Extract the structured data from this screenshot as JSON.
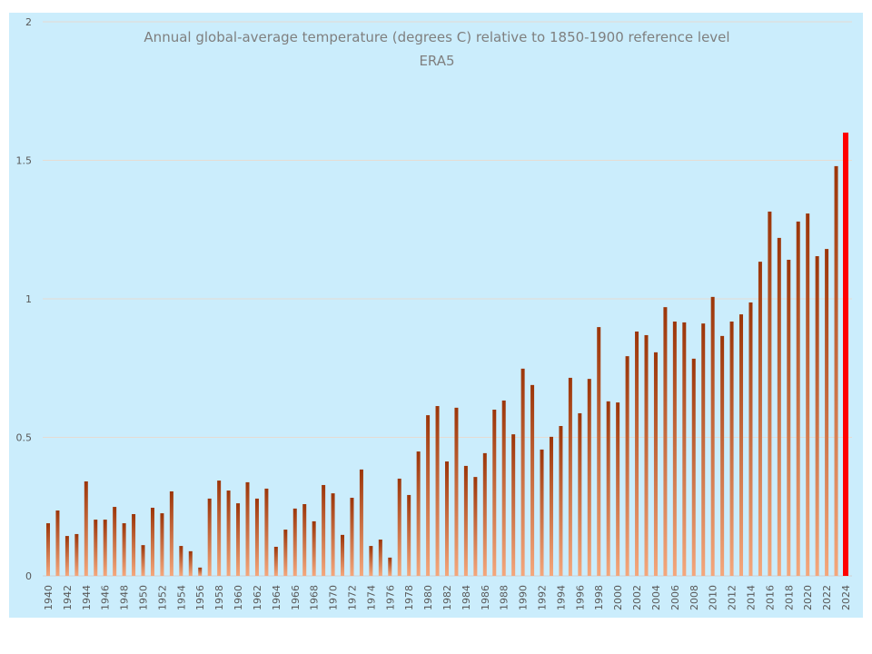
{
  "chart_data": {
    "type": "bar",
    "title": "Annual global-average temperature (degrees C) relative to 1850-1900 reference level",
    "subtitle": "ERA5",
    "xlabel": "",
    "ylabel": "",
    "ylim": [
      0,
      2
    ],
    "yticks": [
      "0",
      "0.5",
      "1",
      "1.5",
      "2"
    ],
    "grid": true,
    "legend": "none",
    "colors": {
      "bar": "#a0380a",
      "bar_light": "#f4a77c",
      "highlight": "#ff0000",
      "background": "#cbedfc"
    },
    "categories": [
      "1940",
      "1941",
      "1942",
      "1943",
      "1944",
      "1945",
      "1946",
      "1947",
      "1948",
      "1949",
      "1950",
      "1951",
      "1952",
      "1953",
      "1954",
      "1955",
      "1956",
      "1957",
      "1958",
      "1959",
      "1960",
      "1961",
      "1962",
      "1963",
      "1964",
      "1965",
      "1966",
      "1967",
      "1968",
      "1969",
      "1970",
      "1971",
      "1972",
      "1973",
      "1974",
      "1975",
      "1976",
      "1977",
      "1978",
      "1979",
      "1980",
      "1981",
      "1982",
      "1983",
      "1984",
      "1985",
      "1986",
      "1987",
      "1988",
      "1989",
      "1990",
      "1991",
      "1992",
      "1993",
      "1994",
      "1995",
      "1996",
      "1997",
      "1998",
      "1999",
      "2000",
      "2001",
      "2002",
      "2003",
      "2004",
      "2005",
      "2006",
      "2007",
      "2008",
      "2009",
      "2010",
      "2011",
      "2012",
      "2013",
      "2014",
      "2015",
      "2016",
      "2017",
      "2018",
      "2019",
      "2020",
      "2021",
      "2022",
      "2023",
      "2024"
    ],
    "values": [
      0.19,
      0.236,
      0.144,
      0.151,
      0.341,
      0.203,
      0.203,
      0.249,
      0.19,
      0.223,
      0.111,
      0.246,
      0.226,
      0.305,
      0.108,
      0.089,
      0.03,
      0.279,
      0.344,
      0.308,
      0.262,
      0.338,
      0.279,
      0.315,
      0.105,
      0.167,
      0.243,
      0.259,
      0.197,
      0.328,
      0.298,
      0.148,
      0.282,
      0.384,
      0.108,
      0.131,
      0.066,
      0.351,
      0.292,
      0.449,
      0.58,
      0.613,
      0.413,
      0.607,
      0.397,
      0.357,
      0.443,
      0.6,
      0.633,
      0.511,
      0.748,
      0.689,
      0.456,
      0.502,
      0.541,
      0.715,
      0.587,
      0.711,
      0.898,
      0.63,
      0.626,
      0.793,
      0.882,
      0.869,
      0.807,
      0.97,
      0.918,
      0.915,
      0.784,
      0.911,
      1.007,
      0.866,
      0.918,
      0.944,
      0.987,
      1.134,
      1.315,
      1.22,
      1.141,
      1.279,
      1.308,
      1.154,
      1.18,
      1.479,
      1.6
    ],
    "highlighted_category": "2024"
  }
}
